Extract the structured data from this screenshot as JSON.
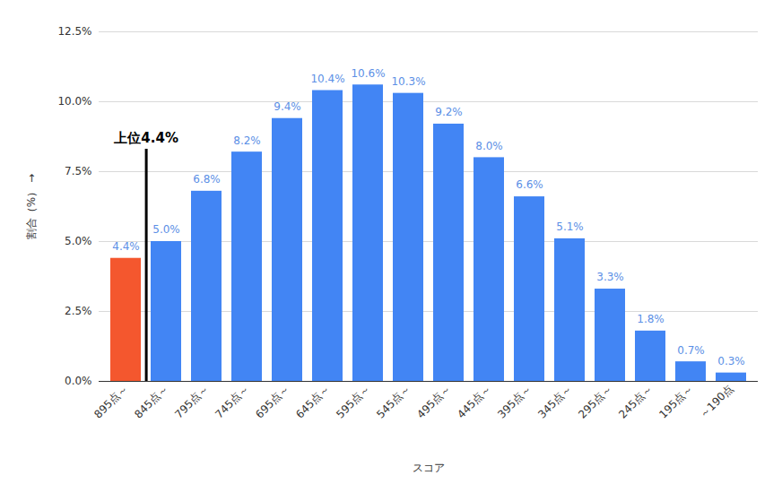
{
  "chart_data": {
    "type": "bar",
    "categories": [
      "895点～",
      "845点～",
      "795点～",
      "745点～",
      "695点～",
      "645点～",
      "595点～",
      "545点～",
      "495点～",
      "445点～",
      "395点～",
      "345点～",
      "295点～",
      "245点～",
      "195点～",
      "～190点"
    ],
    "values": [
      4.4,
      5.0,
      6.8,
      8.2,
      9.4,
      10.4,
      10.6,
      10.3,
      9.2,
      8.0,
      6.6,
      5.1,
      3.3,
      1.8,
      0.7,
      0.3
    ],
    "value_labels": [
      "4.4%",
      "5.0%",
      "6.8%",
      "8.2%",
      "9.4%",
      "10.4%",
      "10.6%",
      "10.3%",
      "9.2%",
      "8.0%",
      "6.6%",
      "5.1%",
      "3.3%",
      "1.8%",
      "0.7%",
      "0.3%"
    ],
    "colors": [
      "#f4572e",
      "#4285f4",
      "#4285f4",
      "#4285f4",
      "#4285f4",
      "#4285f4",
      "#4285f4",
      "#4285f4",
      "#4285f4",
      "#4285f4",
      "#4285f4",
      "#4285f4",
      "#4285f4",
      "#4285f4",
      "#4285f4",
      "#4285f4"
    ],
    "x_label": "スコア",
    "y_label": "割合（%）",
    "ylim": [
      0,
      12.5
    ],
    "yticks": [
      {
        "value": 0,
        "label": "0.0%"
      },
      {
        "value": 2.5,
        "label": "2.5%"
      },
      {
        "value": 5,
        "label": "5.0%"
      },
      {
        "value": 7.5,
        "label": "7.5%"
      },
      {
        "value": 10,
        "label": "10.0%"
      },
      {
        "value": 12.5,
        "label": "12.5%"
      }
    ],
    "grid": true,
    "data_labels": true,
    "annotations": [
      {
        "text": "上位4.4%",
        "y": 8.3
      }
    ]
  }
}
